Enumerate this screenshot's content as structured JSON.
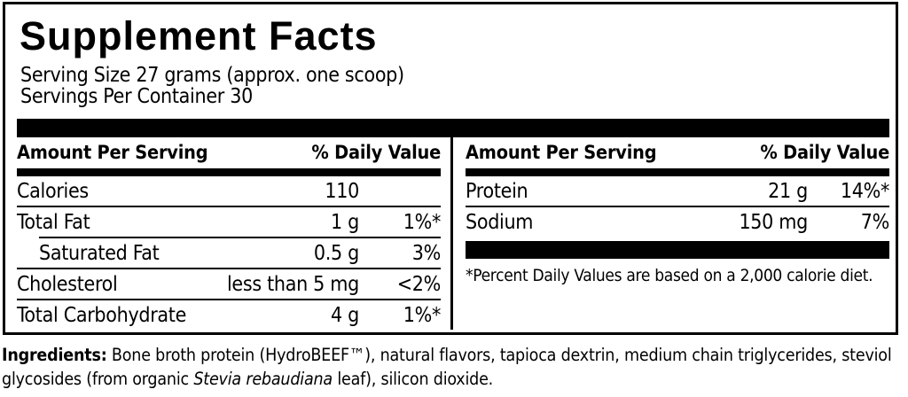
{
  "panel": {
    "title": "Supplement Facts",
    "serving_size": "Serving Size 27 grams (approx. one scoop)",
    "servings_per_container": "Servings Per Container 30",
    "table_headers": {
      "amount": "Amount Per Serving",
      "daily_value": "% Daily Value"
    },
    "left_table": {
      "rows": [
        {
          "name": "Calories",
          "amount": "110",
          "daily_value": ""
        },
        {
          "name": "Total Fat",
          "amount": "1 g",
          "daily_value": "1%*"
        },
        {
          "name": "Saturated Fat",
          "amount": "0.5 g",
          "daily_value": "3%"
        },
        {
          "name": "Cholesterol",
          "amount": "less than 5 mg",
          "daily_value": "<2%"
        },
        {
          "name": "Total Carbohydrate",
          "amount": "4 g",
          "daily_value": "1%*"
        }
      ]
    },
    "right_table": {
      "rows": [
        {
          "name": "Protein",
          "amount": "21 g",
          "daily_value": "14%*"
        },
        {
          "name": "Sodium",
          "amount": "150 mg",
          "daily_value": "7%"
        }
      ],
      "footnote": "*Percent Daily Values are based on a 2,000 calorie diet."
    }
  },
  "ingredients": {
    "label": "Ingredients:",
    "text_before_italic": " Bone broth protein (HydroBEEF™), natural flavors, tapioca dextrin, medium chain triglycerides, steviol glycosides (from organic ",
    "italic_text": "Stevia rebaudiana",
    "text_after_italic": " leaf), silicon dioxide."
  },
  "colors": {
    "text": "#000000",
    "background": "#ffffff",
    "rule": "#000000"
  }
}
